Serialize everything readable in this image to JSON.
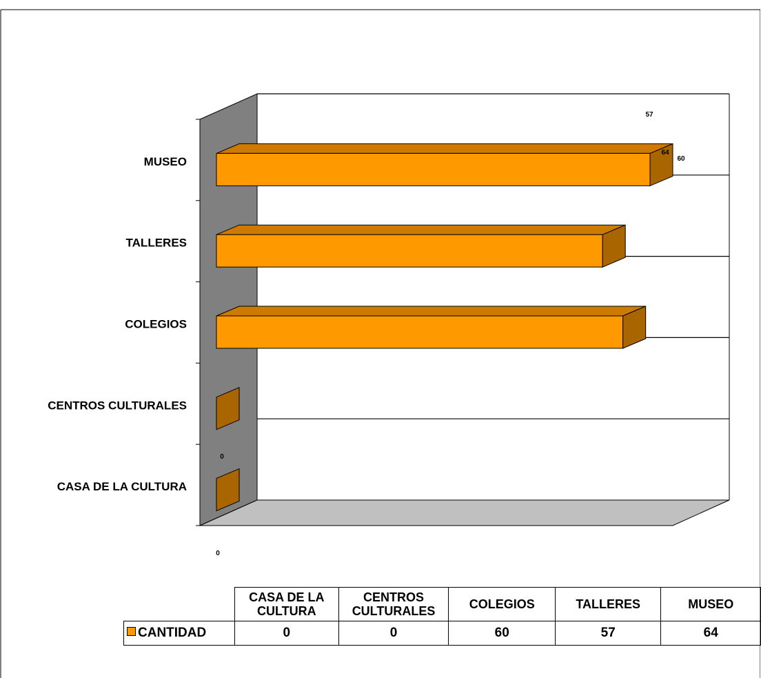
{
  "chart_data": {
    "type": "bar",
    "orientation": "horizontal",
    "style": "3d",
    "categories": [
      "CASA DE LA CULTURA",
      "CENTROS CULTURALES",
      "COLEGIOS",
      "TALLERES",
      "MUSEO"
    ],
    "series": [
      {
        "name": "CANTIDAD",
        "values": [
          0,
          0,
          60,
          57,
          64
        ]
      }
    ],
    "axis_label_zero": "0",
    "extra_data_labels": {
      "museo_top": "57",
      "museo_front": "64",
      "museo_side": "60",
      "casa_front": "0"
    },
    "xlim": [
      0,
      70
    ],
    "grid": true,
    "legend": "data-table-below",
    "colors": {
      "bar_front": "#FF9900",
      "bar_top": "#CC7A00",
      "bar_side": "#A86500",
      "back_wall": "#FFFFFF",
      "side_wall": "#808080",
      "floor": "#C0C0C0"
    }
  },
  "table": {
    "header": [
      "CASA DE LA\nCULTURA",
      "CENTROS\nCULTURALES",
      "COLEGIOS",
      "TALLERES",
      "MUSEO"
    ],
    "row_label": "CANTIDAD",
    "values": [
      "0",
      "0",
      "60",
      "57",
      "64"
    ]
  }
}
